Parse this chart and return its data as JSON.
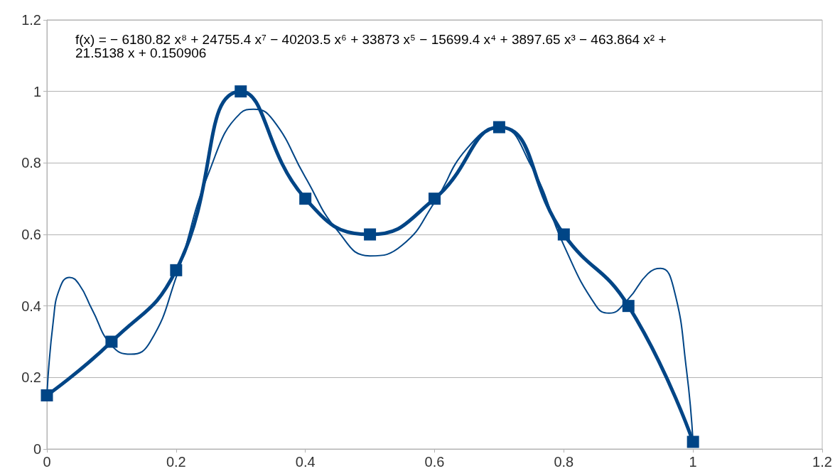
{
  "chart_data": {
    "type": "line",
    "xlim": [
      0,
      1.2
    ],
    "xticks": [
      0,
      0.2,
      0.4,
      0.6,
      0.8,
      1,
      1.2
    ],
    "ylim": [
      0,
      1.2
    ],
    "yticks": [
      0,
      0.2,
      0.4,
      0.6,
      0.8,
      1,
      1.2
    ],
    "grid": "y",
    "annotations": [
      "f(x) = − 6180.82 x⁸ + 24755.4 x⁷ − 40203.5 x⁶ + 33873 x⁵ − 15699.4 x⁴ + 3897.65 x³ − 463.864 x² + 21.5138 x + 0.150906"
    ],
    "series": [
      {
        "color": "#004586",
        "marker": "square",
        "x": [
          0,
          0.1,
          0.2,
          0.3,
          0.4,
          0.5,
          0.6,
          0.7,
          0.8,
          0.9,
          1
        ],
        "values": [
          0.15,
          0.3,
          0.5,
          1,
          0.7,
          0.6,
          0.7,
          0.9,
          0.6,
          0.4,
          0.02
        ]
      },
      {
        "color": "#004586",
        "marker": "none",
        "x": [
          0,
          0.01,
          0.02,
          0.035,
          0.05,
          0.07,
          0.1,
          0.13,
          0.16,
          0.2,
          0.25,
          0.3,
          0.32,
          0.35,
          0.4,
          0.45,
          0.5,
          0.55,
          0.6,
          0.65,
          0.7,
          0.75,
          0.8,
          0.85,
          0.87,
          0.9,
          0.93,
          0.95,
          0.97,
          0.99,
          1
        ],
        "values": [
          0.15,
          0.36,
          0.45,
          0.48,
          0.46,
          0.39,
          0.29,
          0.265,
          0.3,
          0.48,
          0.77,
          0.94,
          0.95,
          0.92,
          0.76,
          0.61,
          0.54,
          0.57,
          0.69,
          0.84,
          0.9,
          0.79,
          0.57,
          0.4,
          0.38,
          0.42,
          0.49,
          0.505,
          0.45,
          0.22,
          0.02
        ]
      }
    ]
  }
}
